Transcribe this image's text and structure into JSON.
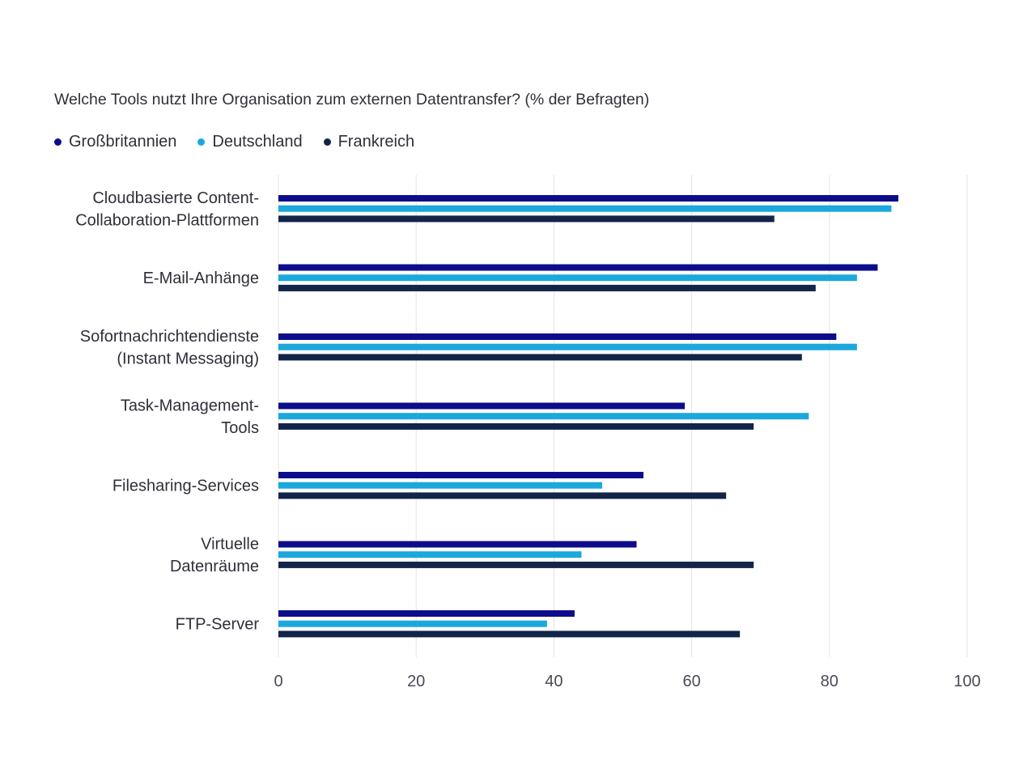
{
  "chart_data": {
    "type": "bar",
    "orientation": "horizontal",
    "title": "Welche Tools nutzt Ihre Organisation zum externen Datentransfer? (% der Befragten)",
    "categories": [
      [
        "Cloudbasierte Content-",
        "Collaboration-Plattformen"
      ],
      [
        "E-Mail-Anhänge"
      ],
      [
        "Sofortnachrichtendienste",
        "(Instant Messaging)"
      ],
      [
        "Task-Management-",
        "Tools"
      ],
      [
        "Filesharing-Services"
      ],
      [
        "Virtuelle",
        "Datenräume"
      ],
      [
        "FTP-Server"
      ]
    ],
    "series": [
      {
        "name": "Großbritannien",
        "color": "#0d0d8c",
        "values": [
          90,
          87,
          81,
          59,
          53,
          52,
          43
        ]
      },
      {
        "name": "Deutschland",
        "color": "#1ba8dc",
        "values": [
          89,
          84,
          84,
          77,
          47,
          44,
          39
        ]
      },
      {
        "name": "Frankreich",
        "color": "#13244a",
        "values": [
          72,
          78,
          76,
          69,
          65,
          69,
          67
        ]
      }
    ],
    "xlim": [
      0,
      100
    ],
    "xticks": [
      "0",
      "20",
      "40",
      "60",
      "80",
      "100"
    ],
    "xlabel": "",
    "ylabel": "",
    "grid": "vertical",
    "legend": "top-left"
  }
}
